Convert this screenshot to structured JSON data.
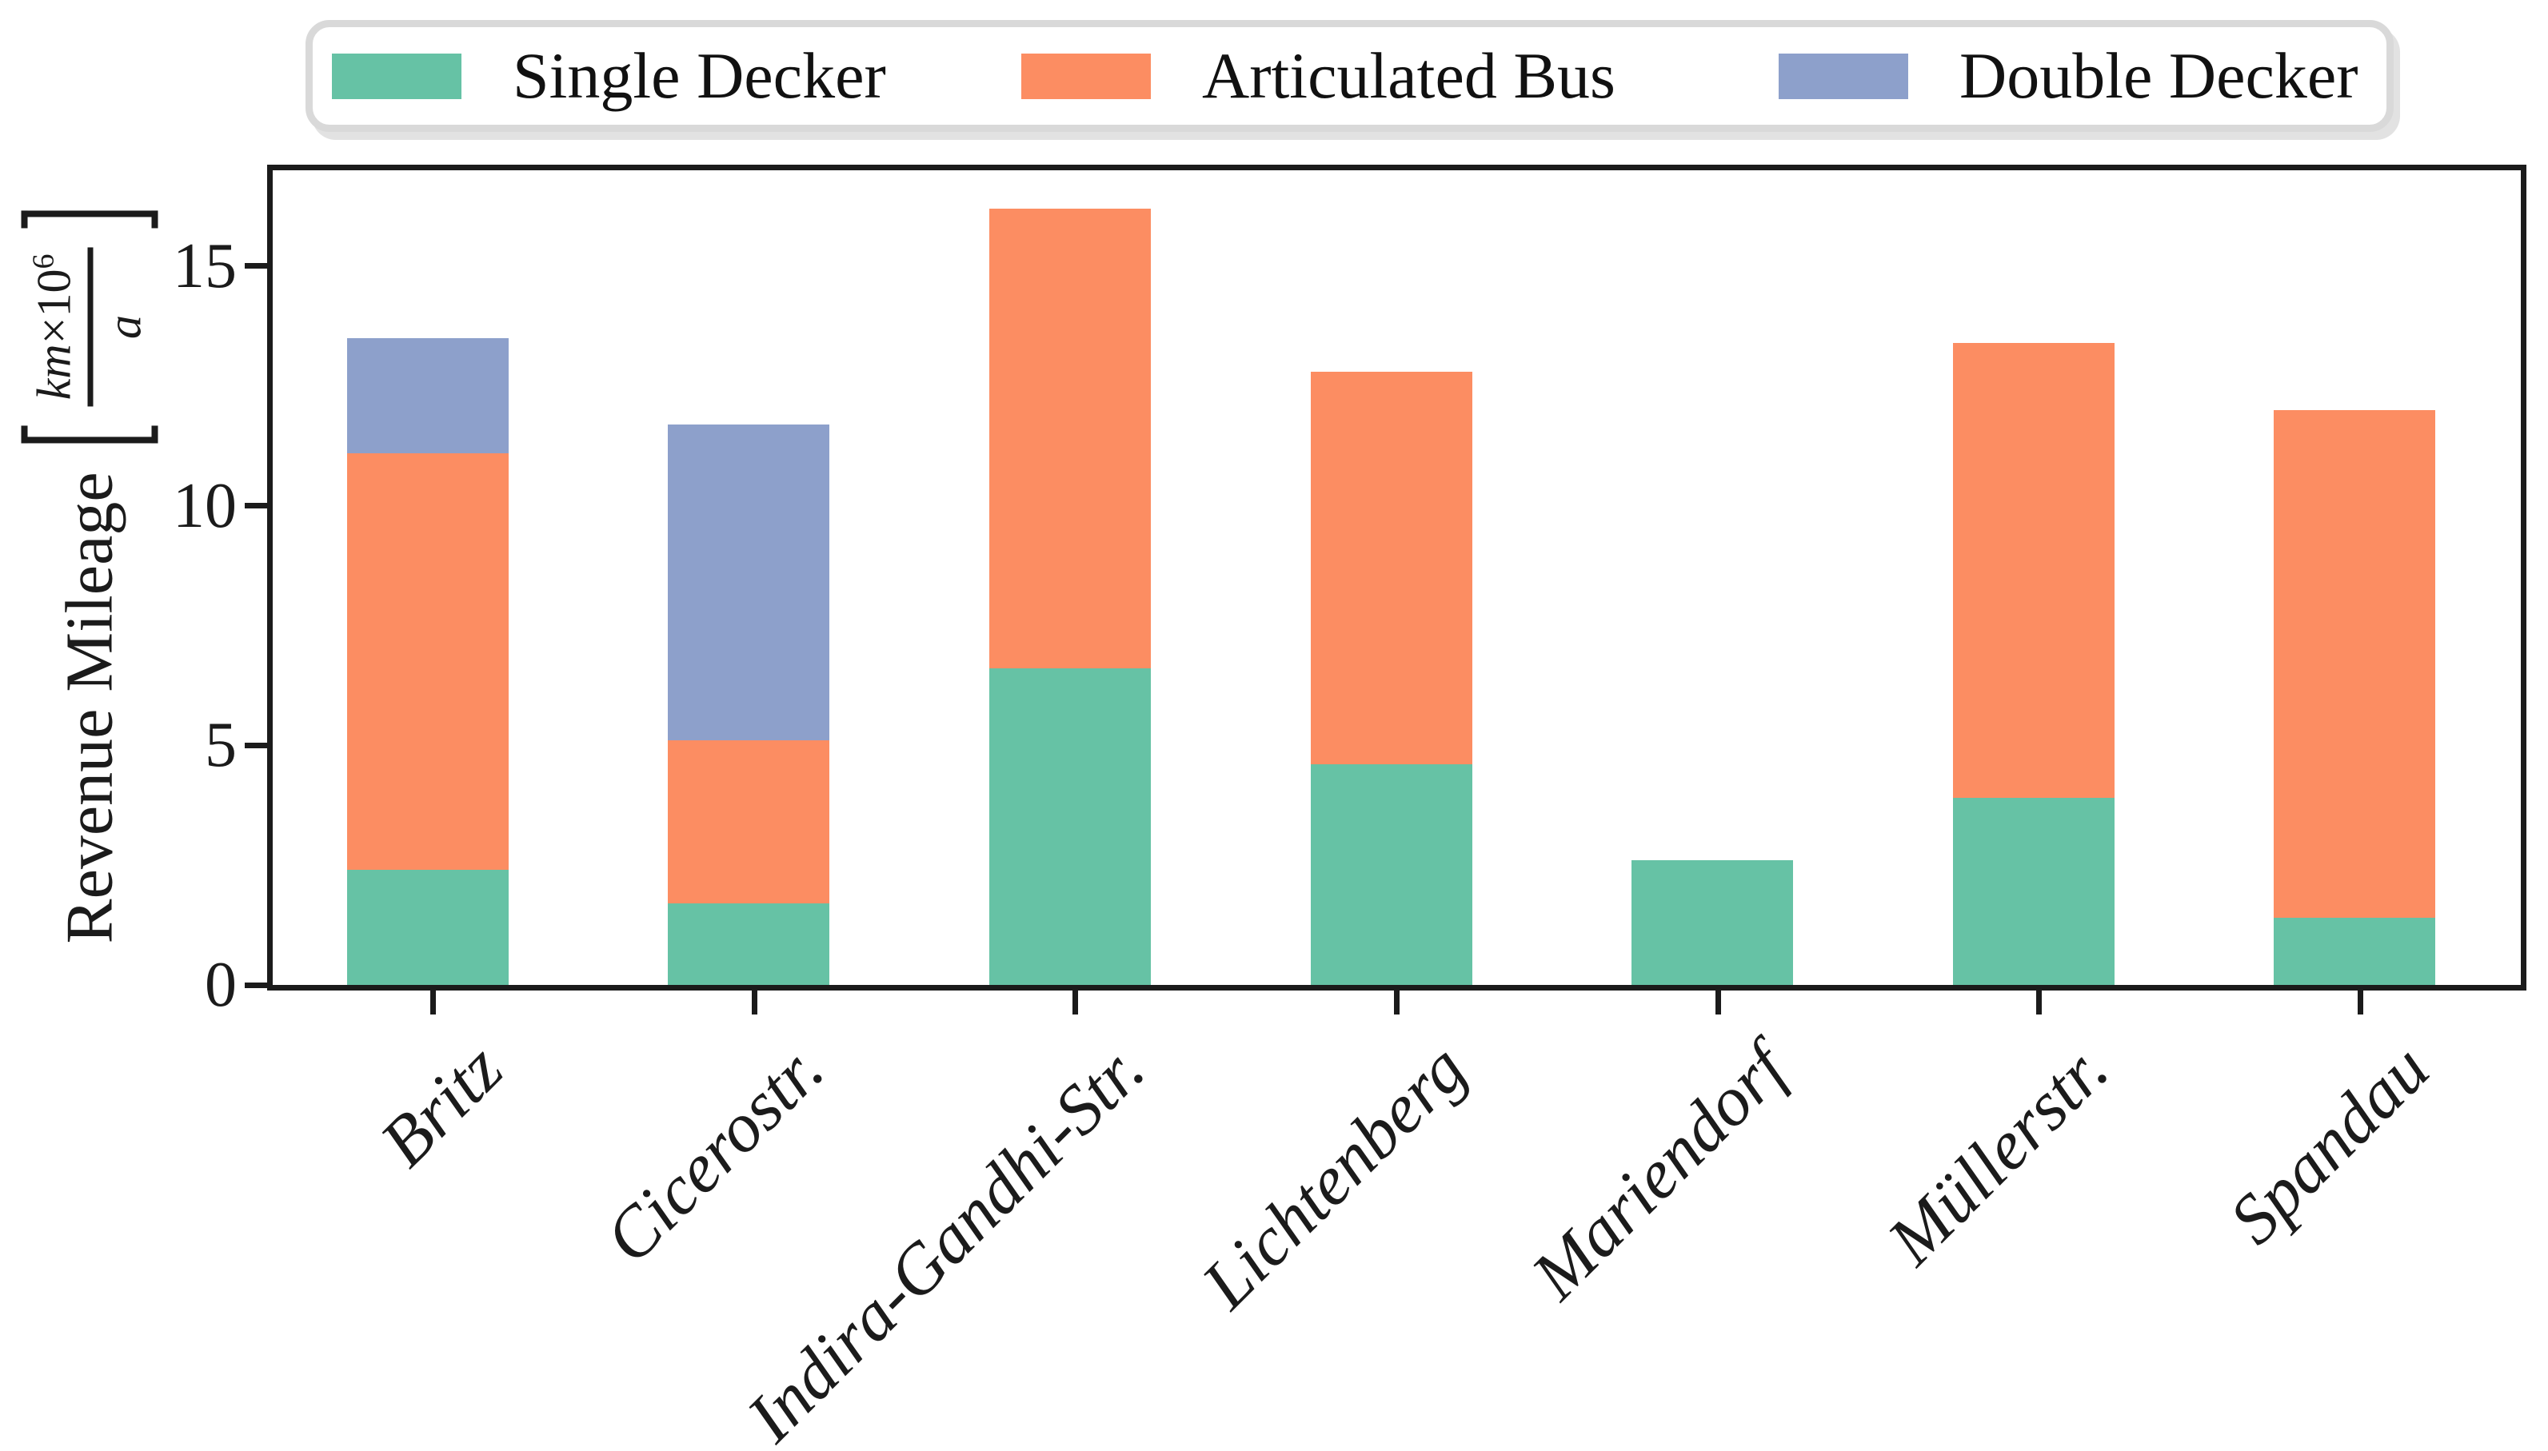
{
  "chart_data": {
    "type": "bar",
    "stacked": true,
    "title": "",
    "xlabel": "",
    "ylabel": "Revenue Mileage [km×10^6 / a]",
    "categories": [
      "Britz",
      "Cicerostr.",
      "Indira-Gandhi-Str.",
      "Lichtenberg",
      "Mariendorf",
      "Müllerstr.",
      "Spandau"
    ],
    "series": [
      {
        "name": "Single Decker",
        "color": "#66c2a5",
        "values": [
          2.4,
          1.7,
          6.6,
          4.6,
          2.6,
          3.9,
          1.4
        ]
      },
      {
        "name": "Articulated Bus",
        "color": "#fc8d62",
        "values": [
          8.7,
          3.4,
          9.6,
          8.2,
          0.0,
          9.5,
          10.6
        ]
      },
      {
        "name": "Double Decker",
        "color": "#8da0cb",
        "values": [
          2.4,
          6.6,
          0.0,
          0.0,
          0.0,
          0.0,
          0.0
        ]
      }
    ],
    "totals": [
      13.5,
      11.7,
      16.2,
      12.8,
      2.6,
      13.4,
      12.0
    ],
    "yticks": [
      0,
      5,
      10,
      15
    ],
    "ytick_labels": [
      "0",
      "5",
      "10",
      "15"
    ],
    "ylim": [
      0,
      17
    ],
    "grid": false,
    "legend_position": "top"
  },
  "legend": {
    "items": [
      {
        "label": "Single Decker"
      },
      {
        "label": "Articulated Bus"
      },
      {
        "label": "Double Decker"
      }
    ]
  },
  "ylabel_parts": {
    "main": "Revenue Mileage",
    "unit_num_base": "km",
    "unit_times": "×10",
    "unit_exp": "6",
    "unit_den": "a"
  },
  "axis_colors": {
    "spine": "#1b1b1b",
    "text": "#1b1b1b",
    "legend_border": "#d9d9d9"
  }
}
